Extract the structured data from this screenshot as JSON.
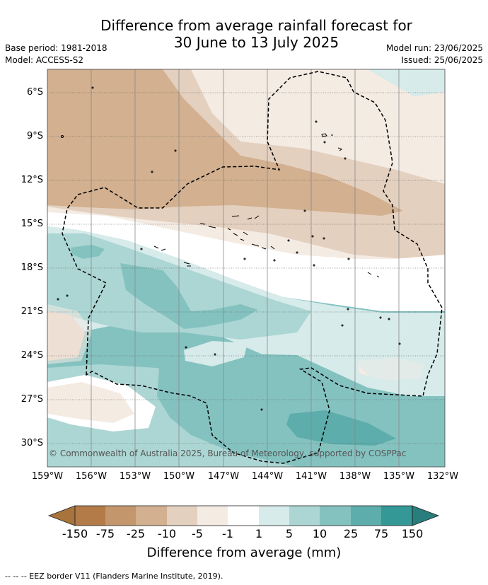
{
  "title": {
    "line1": "Difference from average rainfall forecast for",
    "line2": "30 June to 13 July 2025"
  },
  "meta": {
    "base_period": "Base period: 1981-2018",
    "model": "Model: ACCESS-S2",
    "model_run": "Model run: 23/06/2025",
    "issued": "Issued: 25/06/2025"
  },
  "map": {
    "lat_labels": [
      "6°S",
      "9°S",
      "12°S",
      "15°S",
      "18°S",
      "21°S",
      "24°S",
      "27°S",
      "30°S"
    ],
    "lon_labels": [
      "159°W",
      "156°W",
      "153°W",
      "150°W",
      "147°W",
      "144°W",
      "141°W",
      "138°W",
      "135°W",
      "132°W"
    ],
    "copyright": "© Commonwealth of Australia 2025, Bureau of Meteorology, supported by COSPPac"
  },
  "legend": {
    "ticks": [
      "-150",
      "-75",
      "-25",
      "-10",
      "-5",
      "-1",
      "1",
      "5",
      "10",
      "25",
      "75",
      "150"
    ],
    "colors": [
      "#a8743c",
      "#b27b47",
      "#c4966c",
      "#d2b090",
      "#e4d0bf",
      "#f4ebe3",
      "#ffffff",
      "#d6ebea",
      "#acd6d4",
      "#84c2c0",
      "#5cadab",
      "#349896",
      "#287e7c"
    ],
    "title": "Difference from average (mm)"
  },
  "footnote": "--  --  -- EEZ border V11 (Flanders Marine Institute, 2019)."
}
